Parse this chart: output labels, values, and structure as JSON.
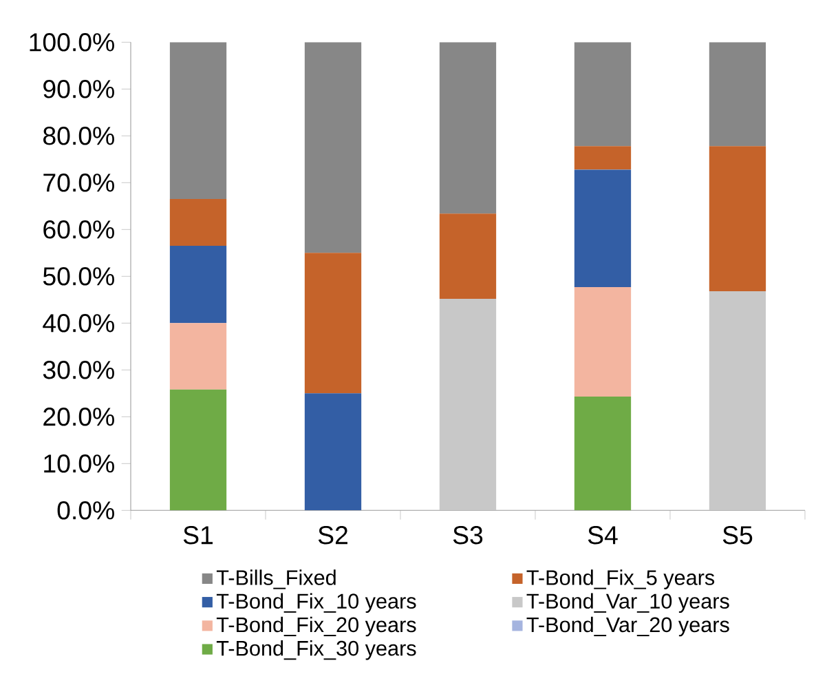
{
  "chart_data": {
    "type": "bar",
    "stacked": true,
    "categories": [
      "S1",
      "S2",
      "S3",
      "S4",
      "S5"
    ],
    "series": [
      {
        "name": "T-Bond_Fix_30 years",
        "color": "#6fab46",
        "values": [
          25.8,
          0,
          0,
          24.3,
          0
        ]
      },
      {
        "name": "T-Bond_Var_20 years",
        "color": "#a5b4df",
        "values": [
          0,
          0,
          0,
          0,
          0
        ]
      },
      {
        "name": "T-Bond_Fix_20 years",
        "color": "#f3b5a0",
        "values": [
          14.2,
          0,
          0,
          23.4,
          0
        ]
      },
      {
        "name": "T-Bond_Var_10 years",
        "color": "#c8c8c8",
        "values": [
          0,
          0,
          45.2,
          0,
          46.8
        ]
      },
      {
        "name": "T-Bond_Fix_10 years",
        "color": "#335ea5",
        "values": [
          16.5,
          25.0,
          0,
          25.1,
          0
        ]
      },
      {
        "name": "T-Bond_Fix_5 years",
        "color": "#c5632a",
        "values": [
          10.0,
          30.0,
          18.2,
          5.0,
          31.0
        ]
      },
      {
        "name": "T-Bills_Fixed",
        "color": "#878787",
        "values": [
          33.5,
          45.0,
          36.6,
          22.2,
          22.2
        ]
      }
    ],
    "ylim": [
      0,
      100
    ],
    "yticks": [
      {
        "value": 0,
        "label": "0.0%"
      },
      {
        "value": 10,
        "label": "10.0%"
      },
      {
        "value": 20,
        "label": "20.0%"
      },
      {
        "value": 30,
        "label": "30.0%"
      },
      {
        "value": 40,
        "label": "40.0%"
      },
      {
        "value": 50,
        "label": "50.0%"
      },
      {
        "value": 60,
        "label": "60.0%"
      },
      {
        "value": 70,
        "label": "70.0%"
      },
      {
        "value": 80,
        "label": "80.0%"
      },
      {
        "value": 90,
        "label": "90.0%"
      },
      {
        "value": 100,
        "label": "100.0%"
      }
    ],
    "grid": false,
    "legend": "bottom"
  }
}
